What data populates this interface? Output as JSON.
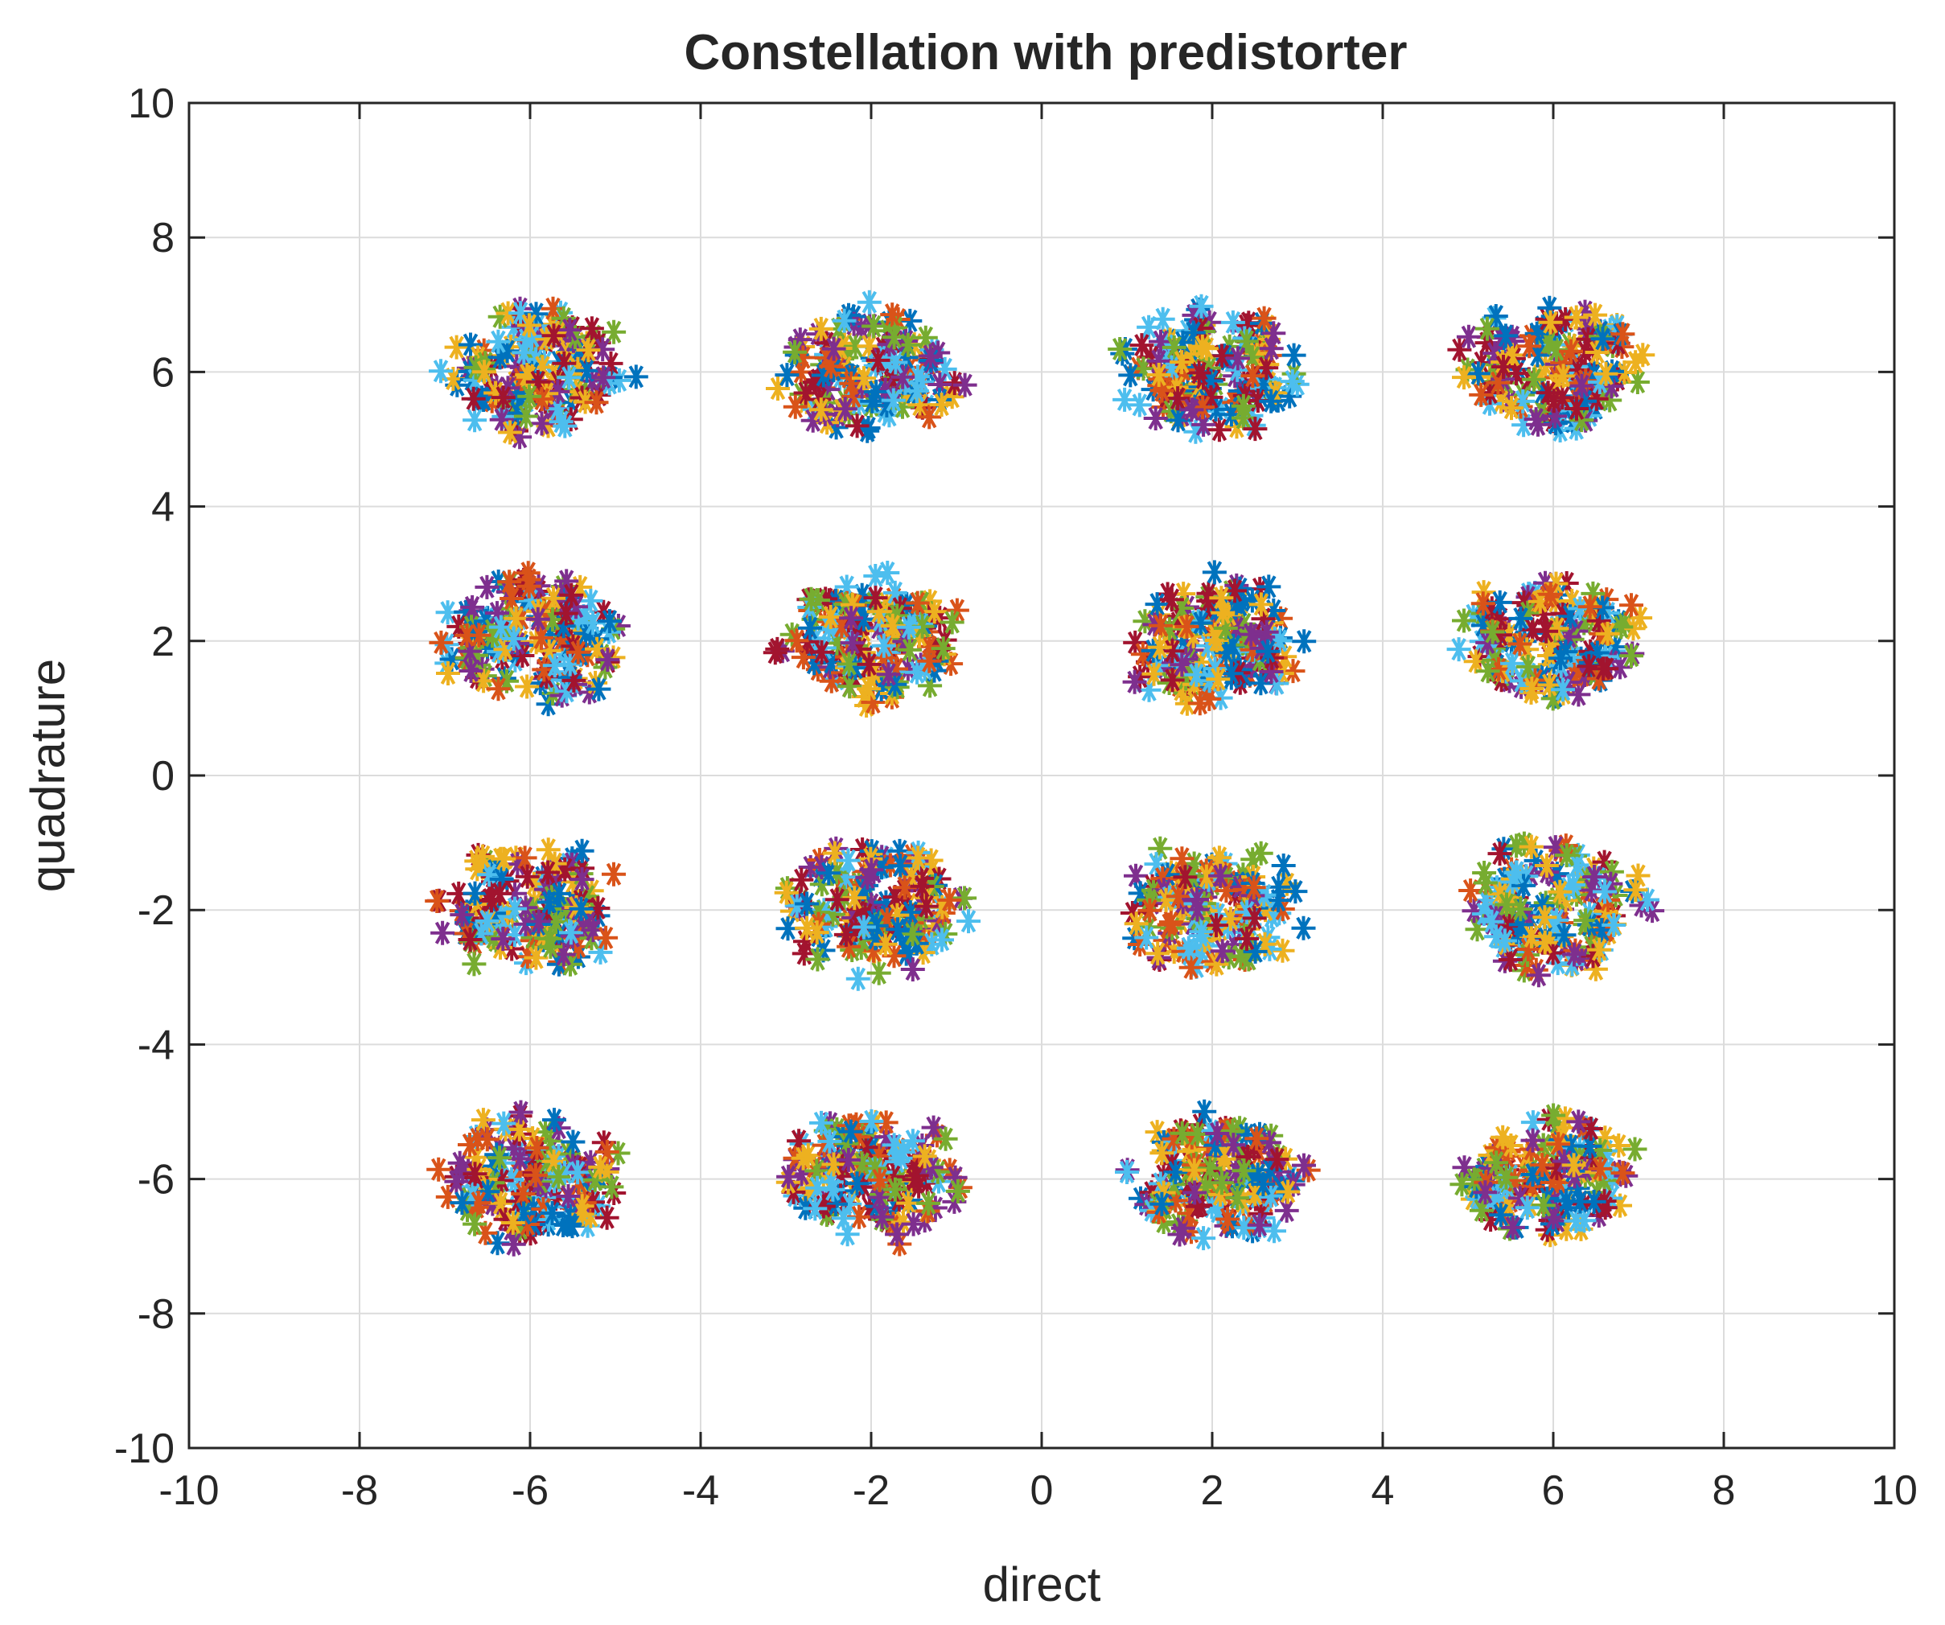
{
  "chart_data": {
    "type": "scatter",
    "title": "Constellation with predistorter",
    "xlabel": "direct",
    "ylabel": "quadrature",
    "xlim": [
      -10,
      10
    ],
    "ylim": [
      -10,
      10
    ],
    "xticks": [
      "-10",
      "-8",
      "-6",
      "-4",
      "-2",
      "0",
      "2",
      "4",
      "6",
      "8",
      "10"
    ],
    "yticks": [
      "-10",
      "-8",
      "-6",
      "-4",
      "-2",
      "0",
      "2",
      "4",
      "6",
      "8",
      "10"
    ],
    "grid": true,
    "marker": "asterisk",
    "series_colors": [
      "#0072BD",
      "#D95319",
      "#EDB120",
      "#7E2F8E",
      "#77AC30",
      "#4DBEEE",
      "#A2142F"
    ],
    "clusters": [
      {
        "x": -5.9,
        "y": 6.0,
        "spread": 1.0
      },
      {
        "x": -2.0,
        "y": 6.0,
        "spread": 1.0
      },
      {
        "x": 2.0,
        "y": 6.0,
        "spread": 1.0
      },
      {
        "x": 6.0,
        "y": 6.1,
        "spread": 1.0
      },
      {
        "x": -6.0,
        "y": 2.0,
        "spread": 1.0
      },
      {
        "x": -2.0,
        "y": 2.0,
        "spread": 1.0
      },
      {
        "x": 2.0,
        "y": 2.0,
        "spread": 1.0
      },
      {
        "x": 6.0,
        "y": 2.0,
        "spread": 1.0
      },
      {
        "x": -6.0,
        "y": -2.0,
        "spread": 1.0
      },
      {
        "x": -2.0,
        "y": -2.0,
        "spread": 1.0
      },
      {
        "x": 2.0,
        "y": -2.0,
        "spread": 1.0
      },
      {
        "x": 6.0,
        "y": -2.0,
        "spread": 1.0
      },
      {
        "x": -6.0,
        "y": -6.0,
        "spread": 1.0
      },
      {
        "x": -2.0,
        "y": -6.0,
        "spread": 1.0
      },
      {
        "x": 2.0,
        "y": -6.0,
        "spread": 1.0
      },
      {
        "x": 6.0,
        "y": -6.0,
        "spread": 1.0
      }
    ],
    "points_per_cluster": 160
  }
}
